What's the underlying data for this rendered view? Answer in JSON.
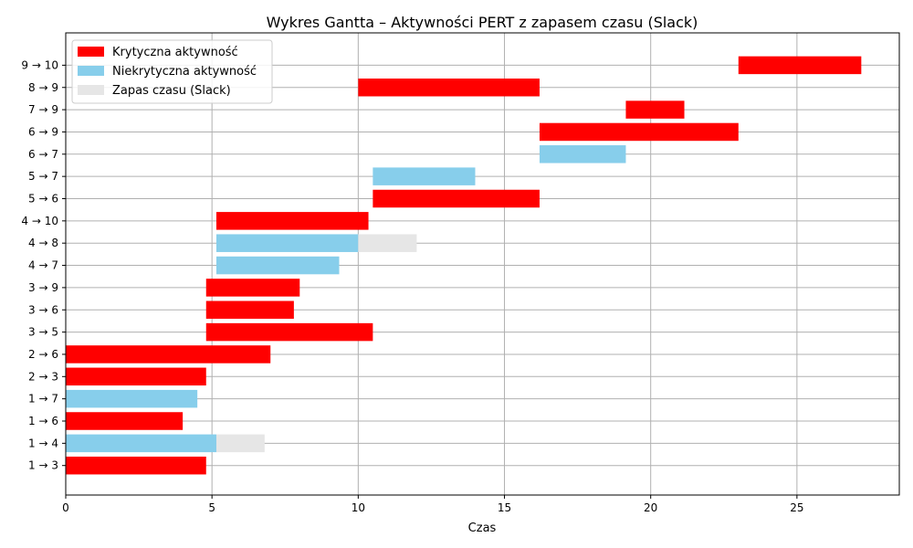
{
  "chart_data": {
    "type": "bar",
    "orientation": "horizontal",
    "title": "Wykres Gantta – Aktywności PERT z zapasem czasu (Slack)",
    "xlabel": "Czas",
    "ylabel": "",
    "xlim": [
      0,
      28.5
    ],
    "xticks": [
      0,
      5,
      10,
      15,
      20,
      25
    ],
    "grid": true,
    "legend_position": "top-left",
    "colors": {
      "critical": "#ff0000",
      "noncritical": "#87ceeb",
      "slack": "#e6e6e6"
    },
    "legend": [
      {
        "key": "critical",
        "label": "Krytyczna aktywność"
      },
      {
        "key": "noncritical",
        "label": "Niekrytyczna aktywność"
      },
      {
        "key": "slack",
        "label": "Zapas czasu (Slack)"
      }
    ],
    "tasks": [
      {
        "label": "1 → 3",
        "start": 0,
        "duration": 4.8,
        "critical": true,
        "slack": 0
      },
      {
        "label": "1 → 4",
        "start": 0,
        "duration": 5.15,
        "critical": false,
        "slack": 1.65
      },
      {
        "label": "1 → 6",
        "start": 0,
        "duration": 4.0,
        "critical": true,
        "slack": 0
      },
      {
        "label": "1 → 7",
        "start": 0,
        "duration": 4.5,
        "critical": false,
        "slack": 0
      },
      {
        "label": "2 → 3",
        "start": 0,
        "duration": 4.8,
        "critical": true,
        "slack": 0
      },
      {
        "label": "2 → 6",
        "start": 0,
        "duration": 7.0,
        "critical": true,
        "slack": 0
      },
      {
        "label": "3 → 5",
        "start": 4.8,
        "duration": 5.7,
        "critical": true,
        "slack": 0
      },
      {
        "label": "3 → 6",
        "start": 4.8,
        "duration": 3.0,
        "critical": true,
        "slack": 0
      },
      {
        "label": "3 → 9",
        "start": 4.8,
        "duration": 3.2,
        "critical": true,
        "slack": 0
      },
      {
        "label": "4 → 7",
        "start": 5.15,
        "duration": 4.2,
        "critical": false,
        "slack": 0
      },
      {
        "label": "4 → 8",
        "start": 5.15,
        "duration": 4.85,
        "critical": false,
        "slack": 2.0
      },
      {
        "label": "4 → 10",
        "start": 5.15,
        "duration": 5.2,
        "critical": true,
        "slack": 0
      },
      {
        "label": "5 → 6",
        "start": 10.5,
        "duration": 5.7,
        "critical": true,
        "slack": 0
      },
      {
        "label": "5 → 7",
        "start": 10.5,
        "duration": 3.5,
        "critical": false,
        "slack": 0
      },
      {
        "label": "6 → 7",
        "start": 16.2,
        "duration": 2.95,
        "critical": false,
        "slack": 0
      },
      {
        "label": "6 → 9",
        "start": 16.2,
        "duration": 6.8,
        "critical": true,
        "slack": 0
      },
      {
        "label": "7 → 9",
        "start": 19.15,
        "duration": 2.0,
        "critical": true,
        "slack": 0
      },
      {
        "label": "8 → 9",
        "start": 10.0,
        "duration": 6.2,
        "critical": true,
        "slack": 0
      },
      {
        "label": "9 → 10",
        "start": 23.0,
        "duration": 4.2,
        "critical": true,
        "slack": 0
      }
    ]
  }
}
